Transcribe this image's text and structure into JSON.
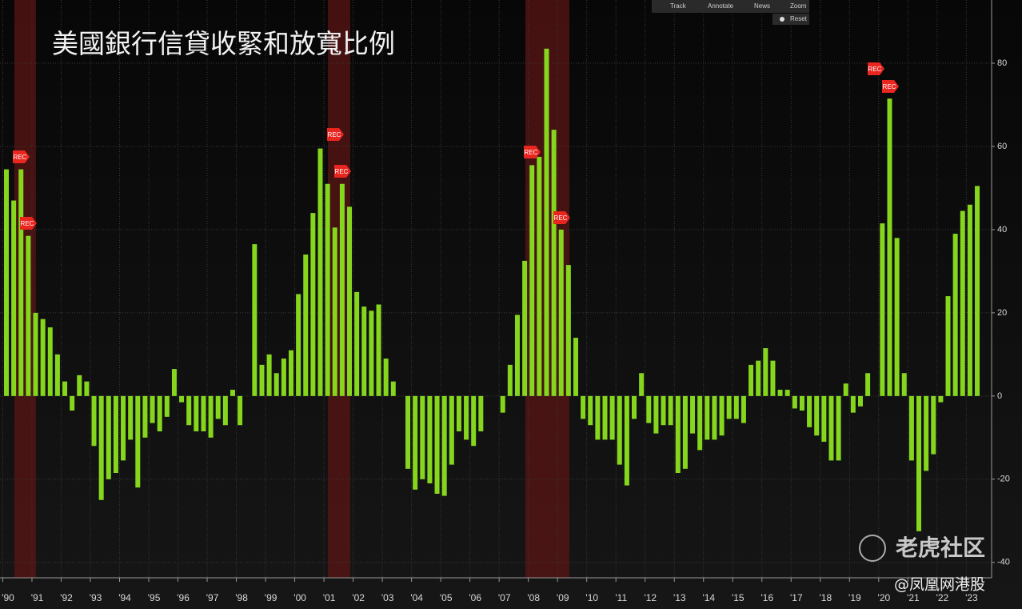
{
  "chart_data": {
    "type": "bar",
    "title": "美國銀行信貸收緊和放寬比例",
    "categories": [
      "'90",
      null,
      null,
      null,
      "'91",
      null,
      null,
      null,
      "'92",
      null,
      null,
      null,
      "'93",
      null,
      null,
      null,
      "'94",
      null,
      null,
      null,
      "'95",
      null,
      null,
      null,
      "'96",
      null,
      null,
      null,
      "'97",
      null,
      null,
      null,
      "'98",
      null,
      null,
      null,
      "'99",
      null,
      null,
      null,
      "'00",
      null,
      null,
      null,
      "'01",
      null,
      null,
      null,
      "'02",
      null,
      null,
      null,
      "'03",
      null,
      null,
      null,
      "'04",
      null,
      null,
      null,
      "'05",
      null,
      null,
      null,
      "'06",
      null,
      null,
      null,
      "'07",
      null,
      null,
      null,
      "'08",
      null,
      null,
      null,
      "'09",
      null,
      null,
      null,
      "'10",
      null,
      null,
      null,
      "'11",
      null,
      null,
      null,
      "'12",
      null,
      null,
      null,
      "'13",
      null,
      null,
      null,
      "'14",
      null,
      null,
      null,
      "'15",
      null,
      null,
      null,
      "'16",
      null,
      null,
      null,
      "'17",
      null,
      null,
      null,
      "'18",
      null,
      null,
      null,
      "'19",
      null,
      null,
      null,
      "'20",
      null,
      null,
      null,
      "'21",
      null,
      null,
      null,
      "'22",
      null,
      null,
      null,
      "'23",
      null
    ],
    "values": [
      54.5,
      47,
      54.5,
      38.5,
      20,
      18.5,
      16.5,
      10,
      3.5,
      -3.5,
      5,
      3.5,
      -12,
      -25,
      -20,
      -18.5,
      -15.5,
      -10.5,
      -22,
      -10,
      -6.5,
      -8.5,
      -5,
      6.5,
      -1.5,
      -7,
      -8.5,
      -8.5,
      -10,
      -5.5,
      -7,
      1.5,
      -7,
      0,
      36.5,
      7.5,
      10,
      5.5,
      9,
      11,
      24.5,
      34,
      44,
      59.5,
      51,
      40.5,
      51,
      45.5,
      25,
      21.5,
      20.5,
      22,
      9,
      3.5,
      0,
      -17.5,
      -22.5,
      -20,
      -21,
      -23.5,
      -24,
      -16.5,
      -8.5,
      -10.5,
      -12,
      -8.5,
      0,
      0,
      -4,
      7.5,
      19.5,
      32.5,
      55.5,
      57.5,
      83.5,
      64,
      40,
      31.5,
      14,
      -5.5,
      -7,
      -10.5,
      -10.5,
      -10.5,
      -16.5,
      -21.5,
      -5.5,
      5.5,
      -6.5,
      -9,
      -7,
      -7,
      -18.5,
      -17.5,
      -9,
      -13,
      -10.5,
      -10.5,
      -9.5,
      -5.5,
      -5.5,
      -6.5,
      7.5,
      8.5,
      11.5,
      8.5,
      1.5,
      1.5,
      -3,
      -3.5,
      -7.5,
      -9.5,
      -11,
      -15.5,
      -15.5,
      3,
      -4,
      -2.5,
      5.5,
      0,
      41.5,
      71.5,
      38,
      5.5,
      -15.5,
      -32.5,
      -18,
      -14,
      -1.5,
      24,
      39,
      44.5,
      46,
      50.5
    ],
    "color": "#86d61e",
    "ylim": [
      -43.7,
      95.2
    ],
    "yticks": [
      -40,
      -20,
      0,
      20,
      40,
      60,
      80
    ],
    "grid": true,
    "annotations": [
      "REC",
      "REC",
      "REC",
      "REC",
      "REC",
      "REC",
      "REC",
      "REC"
    ]
  },
  "toolbar": [
    "Track",
    "Annotate",
    "News",
    "Zoom",
    "Reset"
  ],
  "watermarks": [
    "老虎社区",
    "@凤凰网港股"
  ]
}
